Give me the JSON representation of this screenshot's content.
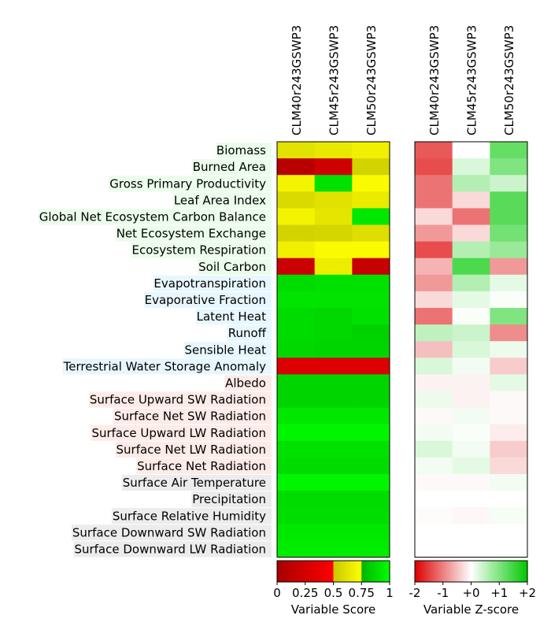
{
  "chart_data": [
    {
      "type": "heatmap",
      "panel": "variable-score",
      "models": [
        "CLM40r243GSWP3",
        "CLM45r243GSWP3",
        "CLM50r243GSWP3"
      ],
      "variables": [
        {
          "name": "Biomass",
          "group": "ecosystem"
        },
        {
          "name": "Burned Area",
          "group": "ecosystem"
        },
        {
          "name": "Gross Primary Productivity",
          "group": "ecosystem"
        },
        {
          "name": "Leaf Area Index",
          "group": "ecosystem"
        },
        {
          "name": "Global Net Ecosystem Carbon Balance",
          "group": "ecosystem"
        },
        {
          "name": "Net Ecosystem Exchange",
          "group": "ecosystem"
        },
        {
          "name": "Ecosystem Respiration",
          "group": "ecosystem"
        },
        {
          "name": "Soil Carbon",
          "group": "ecosystem"
        },
        {
          "name": "Evapotranspiration",
          "group": "hydrology"
        },
        {
          "name": "Evaporative Fraction",
          "group": "hydrology"
        },
        {
          "name": "Latent Heat",
          "group": "hydrology"
        },
        {
          "name": "Runoff",
          "group": "hydrology"
        },
        {
          "name": "Sensible Heat",
          "group": "hydrology"
        },
        {
          "name": "Terrestrial Water Storage Anomaly",
          "group": "hydrology"
        },
        {
          "name": "Albedo",
          "group": "radiation"
        },
        {
          "name": "Surface Upward SW Radiation",
          "group": "radiation"
        },
        {
          "name": "Surface Net SW Radiation",
          "group": "radiation"
        },
        {
          "name": "Surface Upward LW Radiation",
          "group": "radiation"
        },
        {
          "name": "Surface Net LW Radiation",
          "group": "radiation"
        },
        {
          "name": "Surface Net Radiation",
          "group": "radiation"
        },
        {
          "name": "Surface Air Temperature",
          "group": "forcing"
        },
        {
          "name": "Precipitation",
          "group": "forcing"
        },
        {
          "name": "Surface Relative Humidity",
          "group": "forcing"
        },
        {
          "name": "Surface Downward SW Radiation",
          "group": "forcing"
        },
        {
          "name": "Surface Downward LW Radiation",
          "group": "forcing"
        }
      ],
      "values": [
        [
          0.62,
          0.65,
          0.68
        ],
        [
          0.1,
          0.22,
          0.55
        ],
        [
          0.7,
          0.9,
          0.73
        ],
        [
          0.58,
          0.62,
          0.66
        ],
        [
          0.7,
          0.63,
          0.92
        ],
        [
          0.55,
          0.56,
          0.6
        ],
        [
          0.68,
          0.73,
          0.73
        ],
        [
          0.2,
          0.67,
          0.18
        ],
        [
          0.88,
          0.9,
          0.9
        ],
        [
          0.91,
          0.91,
          0.91
        ],
        [
          0.88,
          0.87,
          0.9
        ],
        [
          0.88,
          0.87,
          0.85
        ],
        [
          0.87,
          0.86,
          0.86
        ],
        [
          0.3,
          0.3,
          0.3
        ],
        [
          0.86,
          0.86,
          0.86
        ],
        [
          0.86,
          0.86,
          0.86
        ],
        [
          0.92,
          0.92,
          0.92
        ],
        [
          0.97,
          0.97,
          0.97
        ],
        [
          0.9,
          0.9,
          0.9
        ],
        [
          0.88,
          0.88,
          0.88
        ],
        [
          0.97,
          0.97,
          0.97
        ],
        [
          0.88,
          0.88,
          0.88
        ],
        [
          0.89,
          0.89,
          0.89
        ],
        [
          0.92,
          0.92,
          0.92
        ],
        [
          0.94,
          0.94,
          0.94
        ]
      ],
      "colorbar": {
        "label": "Variable Score",
        "ticks": [
          "0",
          "0.25",
          "0.5",
          "0.75",
          "1"
        ],
        "range": [
          0,
          1
        ],
        "colors": [
          "#a80000",
          "#ff0000",
          "#c8c800",
          "#ffff00",
          "#00b400",
          "#00ff00"
        ]
      }
    },
    {
      "type": "heatmap",
      "panel": "z-score",
      "models": [
        "CLM40r243GSWP3",
        "CLM45r243GSWP3",
        "CLM50r243GSWP3"
      ],
      "values": [
        [
          -1.3,
          0.0,
          1.2
        ],
        [
          -1.4,
          0.3,
          1.0
        ],
        [
          -1.1,
          0.6,
          0.4
        ],
        [
          -1.1,
          -0.3,
          1.3
        ],
        [
          -0.3,
          -1.1,
          1.3
        ],
        [
          -0.8,
          -0.3,
          1.1
        ],
        [
          -1.4,
          0.6,
          0.8
        ],
        [
          -0.6,
          1.4,
          -0.8
        ],
        [
          -0.8,
          0.6,
          0.2
        ],
        [
          -0.3,
          0.2,
          0.05
        ],
        [
          -1.1,
          0.05,
          1.0
        ],
        [
          0.5,
          0.4,
          -0.9
        ],
        [
          -0.5,
          0.3,
          0.15
        ],
        [
          0.3,
          0.1,
          -0.4
        ],
        [
          -0.1,
          -0.1,
          0.2
        ],
        [
          0.15,
          -0.1,
          -0.05
        ],
        [
          -0.05,
          0.1,
          -0.05
        ],
        [
          0.1,
          0.05,
          -0.15
        ],
        [
          0.3,
          0.1,
          -0.4
        ],
        [
          0.1,
          0.2,
          -0.3
        ],
        [
          -0.05,
          -0.05,
          0.1
        ],
        [
          0.0,
          0.0,
          0.0
        ],
        [
          -0.03,
          -0.06,
          0.08
        ],
        [
          0.0,
          0.0,
          0.0
        ],
        [
          0.0,
          0.0,
          0.0
        ]
      ],
      "colorbar": {
        "label": "Variable Z-score",
        "ticks": [
          "-2",
          "-1",
          "+0",
          "+1",
          "+2"
        ],
        "range": [
          -2,
          2
        ],
        "colors": [
          "#dc0000",
          "#ffffff",
          "#00c800"
        ]
      }
    }
  ],
  "group_colors": {
    "ecosystem": "#ecfceb",
    "hydrology": "#e8f7ff",
    "radiation": "#fdebe7",
    "forcing": "#ececec"
  }
}
